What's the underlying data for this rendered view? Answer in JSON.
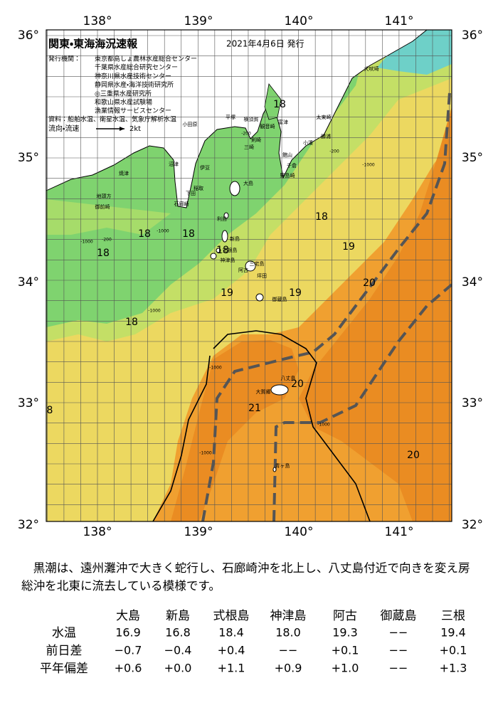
{
  "header": {
    "title": "関東・東海海況速報",
    "date": "2021年4月6日 発行",
    "issuer_label": "発行機関：",
    "issuers": [
      "東京都島しょ農林水産総合センター",
      "千葉県水産総合研究センター",
      "神奈川県水産技術センター",
      "静岡県水産・海洋技術研究所",
      "◎三重県水産研究所",
      "和歌山県水産試験場",
      "漁業情報サービスセンター"
    ],
    "sources": "資料：船舶水温、衛星水温、気象庁解析水温",
    "flow_label": "流向・流速",
    "flow_scale": "2kt"
  },
  "map": {
    "lon_labels": [
      "138°",
      "139°",
      "140°",
      "141°"
    ],
    "lat_labels": [
      "36°",
      "35°",
      "34°",
      "33°",
      "32°"
    ],
    "temperature_labels": [
      18,
      18,
      19,
      20,
      19,
      19,
      18,
      18,
      18,
      18,
      18,
      20,
      21,
      20,
      8
    ],
    "place_names": [
      "犬吠埼",
      "太東崎",
      "勝浦",
      "小湊",
      "館山",
      "千倉",
      "野島崎",
      "富津",
      "横須賀",
      "平塚",
      "小田原",
      "観音崎",
      "剣崎",
      "三崎",
      "伊豆",
      "沼津",
      "焼津",
      "稲取",
      "下田",
      "石廊崎",
      "地頭方",
      "御前崎",
      "大島",
      "利島",
      "新島",
      "式根島",
      "神津島",
      "三宅島",
      "坪田",
      "阿古",
      "御蔵島",
      "八丈島",
      "大賀郷",
      "青ヶ島"
    ],
    "depth_labels": [
      "-1000",
      "-1000",
      "-1000",
      "-1000",
      "-1000",
      "-1000",
      "-1000",
      "-200",
      "-200",
      "-200"
    ]
  },
  "summary": "黒潮は、遠州灘沖で大きく蛇行し、石廊崎沖を北上し、八丈島付近で向きを変え房総沖を北東に流去している模様です。",
  "table": {
    "columns": [
      "大島",
      "新島",
      "式根島",
      "神津島",
      "阿古",
      "御蔵島",
      "三根"
    ],
    "rows": [
      {
        "label": "水温",
        "cells": [
          "16.9",
          "16.8",
          "18.4",
          "18.0",
          "19.3",
          "−−",
          "19.4"
        ]
      },
      {
        "label": "前日差",
        "cells": [
          "−0.7",
          "−0.4",
          "+0.4",
          "−−",
          "+0.1",
          "−−",
          "+0.1"
        ]
      },
      {
        "label": "平年偏差",
        "cells": [
          "+0.6",
          "+0.0",
          "+1.1",
          "+0.9",
          "+1.0",
          "−−",
          "+1.3"
        ]
      }
    ]
  }
}
